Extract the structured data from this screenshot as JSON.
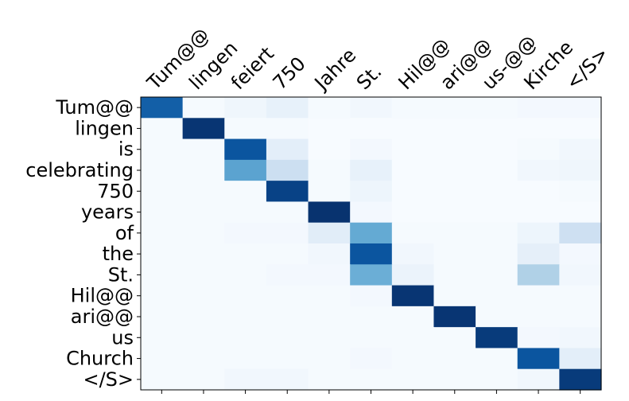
{
  "chart_data": {
    "type": "heatmap",
    "colormap": "Blues",
    "grid": false,
    "x_labels": [
      "Tum@@",
      "lingen",
      "feiert",
      "750",
      "Jahre",
      "St.",
      "Hil@@",
      "ari@@",
      "us-@@",
      "Kirche",
      "</S>"
    ],
    "y_labels": [
      "Tum@@",
      "lingen",
      "is",
      "celebrating",
      "750",
      "years",
      "of",
      "the",
      "St.",
      "Hil@@",
      "ari@@",
      "us",
      "Church",
      "</S>"
    ],
    "values": [
      [
        0.82,
        0.01,
        0.04,
        0.08,
        0.01,
        0.03,
        0.01,
        0.01,
        0.01,
        0.02,
        0.02
      ],
      [
        0.01,
        0.98,
        0.01,
        0.01,
        0.0,
        0.0,
        0.0,
        0.0,
        0.0,
        0.0,
        0.0
      ],
      [
        0.01,
        0.01,
        0.86,
        0.1,
        0.0,
        0.02,
        0.0,
        0.0,
        0.0,
        0.01,
        0.03
      ],
      [
        0.01,
        0.01,
        0.55,
        0.22,
        0.01,
        0.08,
        0.0,
        0.0,
        0.0,
        0.03,
        0.04
      ],
      [
        0.01,
        0.01,
        0.01,
        0.93,
        0.01,
        0.05,
        0.0,
        0.0,
        0.0,
        0.0,
        0.01
      ],
      [
        0.01,
        0.01,
        0.01,
        0.01,
        0.99,
        0.02,
        0.0,
        0.0,
        0.0,
        0.0,
        0.0
      ],
      [
        0.01,
        0.01,
        0.02,
        0.02,
        0.11,
        0.52,
        0.01,
        0.01,
        0.01,
        0.05,
        0.21
      ],
      [
        0.01,
        0.01,
        0.01,
        0.01,
        0.03,
        0.86,
        0.03,
        0.01,
        0.01,
        0.09,
        0.02
      ],
      [
        0.01,
        0.01,
        0.01,
        0.02,
        0.02,
        0.5,
        0.06,
        0.01,
        0.01,
        0.32,
        0.03
      ],
      [
        0.01,
        0.01,
        0.01,
        0.01,
        0.01,
        0.02,
        0.98,
        0.01,
        0.01,
        0.01,
        0.01
      ],
      [
        0.01,
        0.01,
        0.01,
        0.01,
        0.01,
        0.01,
        0.01,
        0.98,
        0.01,
        0.01,
        0.01
      ],
      [
        0.01,
        0.01,
        0.01,
        0.01,
        0.01,
        0.01,
        0.01,
        0.01,
        0.96,
        0.02,
        0.03
      ],
      [
        0.01,
        0.01,
        0.01,
        0.01,
        0.01,
        0.02,
        0.01,
        0.01,
        0.01,
        0.86,
        0.1
      ],
      [
        0.01,
        0.01,
        0.03,
        0.03,
        0.01,
        0.01,
        0.01,
        0.01,
        0.01,
        0.03,
        0.96
      ]
    ]
  }
}
